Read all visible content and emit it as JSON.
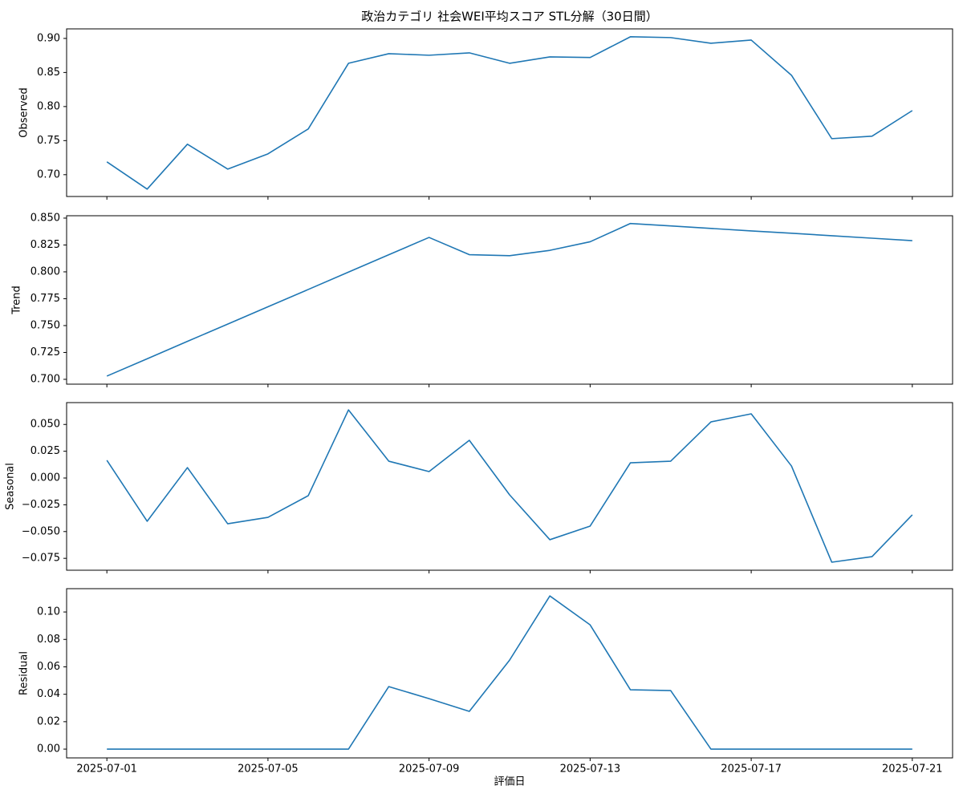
{
  "title": "政治カテゴリ 社会WEI平均スコア STL分解（30日間）",
  "xlabel": "評価日",
  "chart_data": [
    {
      "type": "line",
      "ylabel": "Observed",
      "color": "#1f77b4",
      "x": [
        "2025-07-01",
        "2025-07-02",
        "2025-07-03",
        "2025-07-04",
        "2025-07-05",
        "2025-07-06",
        "2025-07-07",
        "2025-07-08",
        "2025-07-09",
        "2025-07-10",
        "2025-07-11",
        "2025-07-12",
        "2025-07-13",
        "2025-07-14",
        "2025-07-15",
        "2025-07-16",
        "2025-07-17",
        "2025-07-18",
        "2025-07-19",
        "2025-07-20",
        "2025-07-21"
      ],
      "values": [
        0.7188,
        0.6788,
        0.7447,
        0.7082,
        0.7306,
        0.7671,
        0.8635,
        0.8776,
        0.8753,
        0.8788,
        0.8635,
        0.8729,
        0.872,
        0.9024,
        0.9012,
        0.8929,
        0.8976,
        0.8459,
        0.7529,
        0.7565,
        0.7941
      ],
      "xlim": [
        "2025-06-30",
        "2025-07-22"
      ],
      "xticks": [
        "2025-07-01",
        "2025-07-05",
        "2025-07-09",
        "2025-07-13",
        "2025-07-17",
        "2025-07-21"
      ],
      "ylim": [
        0.668,
        0.914
      ],
      "yticks": [
        {
          "value": 0.7,
          "label": "0.70"
        },
        0.75,
        {
          "value": 0.8,
          "label": "0.80"
        },
        0.85,
        {
          "value": 0.9,
          "label": "0.90"
        }
      ]
    },
    {
      "type": "line",
      "ylabel": "Trend",
      "color": "#1f77b4",
      "x": [
        "2025-07-01",
        "2025-07-02",
        "2025-07-03",
        "2025-07-04",
        "2025-07-05",
        "2025-07-06",
        "2025-07-07",
        "2025-07-08",
        "2025-07-09",
        "2025-07-10",
        "2025-07-11",
        "2025-07-12",
        "2025-07-13",
        "2025-07-14",
        "2025-07-15",
        "2025-07-16",
        "2025-07-17",
        "2025-07-18",
        "2025-07-19",
        "2025-07-20",
        "2025-07-21"
      ],
      "values": [
        0.703,
        0.7191,
        0.7353,
        0.7514,
        0.7675,
        0.7836,
        0.7998,
        0.8159,
        0.832,
        0.816,
        0.815,
        0.82,
        0.828,
        0.845,
        0.8427,
        0.8404,
        0.8381,
        0.8359,
        0.8336,
        0.8313,
        0.829
      ],
      "xlim": [
        "2025-06-30",
        "2025-07-22"
      ],
      "xticks": [
        "2025-07-01",
        "2025-07-05",
        "2025-07-09",
        "2025-07-13",
        "2025-07-17",
        "2025-07-21"
      ],
      "ylim": [
        0.6955,
        0.8522
      ],
      "yticks": [
        {
          "value": 0.7,
          "label": "0.700"
        },
        0.725,
        {
          "value": 0.75,
          "label": "0.750"
        },
        0.775,
        {
          "value": 0.8,
          "label": "0.800"
        },
        0.825,
        {
          "value": 0.85,
          "label": "0.850"
        }
      ]
    },
    {
      "type": "line",
      "ylabel": "Seasonal",
      "color": "#1f77b4",
      "x": [
        "2025-07-01",
        "2025-07-02",
        "2025-07-03",
        "2025-07-04",
        "2025-07-05",
        "2025-07-06",
        "2025-07-07",
        "2025-07-08",
        "2025-07-09",
        "2025-07-10",
        "2025-07-11",
        "2025-07-12",
        "2025-07-13",
        "2025-07-14",
        "2025-07-15",
        "2025-07-16",
        "2025-07-17",
        "2025-07-18",
        "2025-07-19",
        "2025-07-20",
        "2025-07-21"
      ],
      "values": [
        0.0165,
        -0.0404,
        0.0097,
        -0.0427,
        -0.0367,
        -0.0165,
        0.0636,
        0.0157,
        0.006,
        0.0352,
        -0.0157,
        -0.0576,
        -0.0449,
        0.0142,
        0.0157,
        0.0524,
        0.0599,
        0.0112,
        -0.0786,
        -0.0734,
        -0.0344
      ],
      "xlim": [
        "2025-06-30",
        "2025-07-22"
      ],
      "xticks": [
        "2025-07-01",
        "2025-07-05",
        "2025-07-09",
        "2025-07-13",
        "2025-07-17",
        "2025-07-21"
      ],
      "ylim": [
        -0.0861,
        0.0704
      ],
      "yticks": [
        {
          "value": -0.075,
          "label": "−0.075"
        },
        {
          "value": -0.05,
          "label": "−0.050"
        },
        {
          "value": -0.025,
          "label": "−0.025"
        },
        {
          "value": 0,
          "label": "0.000"
        },
        0.025,
        {
          "value": 0.05,
          "label": "0.050"
        }
      ]
    },
    {
      "type": "line",
      "ylabel": "Residual",
      "color": "#1f77b4",
      "x": [
        "2025-07-01",
        "2025-07-02",
        "2025-07-03",
        "2025-07-04",
        "2025-07-05",
        "2025-07-06",
        "2025-07-07",
        "2025-07-08",
        "2025-07-09",
        "2025-07-10",
        "2025-07-11",
        "2025-07-12",
        "2025-07-13",
        "2025-07-14",
        "2025-07-15",
        "2025-07-16",
        "2025-07-17",
        "2025-07-18",
        "2025-07-19",
        "2025-07-20",
        "2025-07-21"
      ],
      "values": [
        0,
        0,
        0,
        0,
        0,
        0,
        0,
        0.0456,
        0.0368,
        0.0275,
        0.0649,
        0.1117,
        0.0906,
        0.0433,
        0.0427,
        0,
        0,
        0,
        0,
        0,
        0
      ],
      "xlim": [
        "2025-06-30",
        "2025-07-22"
      ],
      "xticks": [
        "2025-07-01",
        "2025-07-05",
        "2025-07-09",
        "2025-07-13",
        "2025-07-17",
        "2025-07-21"
      ],
      "ylim": [
        -0.0064,
        0.117
      ],
      "yticks": [
        {
          "value": 0,
          "label": "0.00"
        },
        0.02,
        0.04,
        0.06,
        0.08,
        {
          "value": 0.1,
          "label": "0.10"
        }
      ]
    }
  ]
}
